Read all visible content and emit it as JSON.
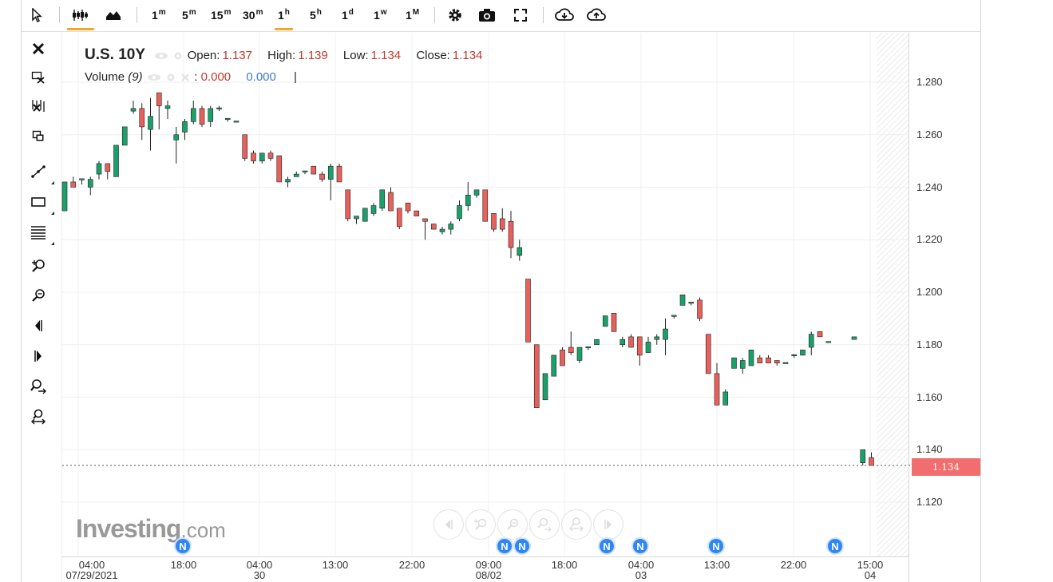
{
  "toolbar": {
    "intervals": [
      {
        "num": "1",
        "unit": "m"
      },
      {
        "num": "5",
        "unit": "m"
      },
      {
        "num": "15",
        "unit": "m"
      },
      {
        "num": "30",
        "unit": "m"
      },
      {
        "num": "1",
        "unit": "h"
      },
      {
        "num": "5",
        "unit": "h"
      },
      {
        "num": "1",
        "unit": "d"
      },
      {
        "num": "1",
        "unit": "w"
      },
      {
        "num": "1",
        "unit": "M"
      }
    ],
    "active_interval": "1h",
    "icons": [
      "cursor-icon",
      "candlestick-icon",
      "area-chart-icon",
      "settings-icon",
      "camera-icon",
      "fullscreen-icon",
      "cloud-download-icon",
      "cloud-upload-icon"
    ]
  },
  "left_tools": [
    "close-icon",
    "delete-drawings-icon",
    "delete-studies-icon",
    "copy-icon",
    "trend-line-icon",
    "rectangle-icon",
    "fibonacci-icon",
    "zoom-in-icon",
    "zoom-out-icon",
    "scroll-left-icon",
    "scroll-right-icon",
    "zoom-in-area-icon",
    "zoom-reset-icon"
  ],
  "legend": {
    "symbol": "U.S. 10Y",
    "open_label": "Open:",
    "open": "1.137",
    "high_label": "High:",
    "high": "1.139",
    "low_label": "Low:",
    "low": "1.134",
    "close_label": "Close:",
    "close": "1.134",
    "volume_label": "Volume",
    "volume_param": "(9)",
    "volume_sep": ":",
    "volume_val1": "0.000",
    "volume_val2": "0.000",
    "cursor_mark": "|"
  },
  "current_price": "1.134",
  "logo": {
    "brand": "Investing",
    "domain": ".com"
  },
  "news_badge": "N",
  "colors": {
    "up": "#1aa06a",
    "down": "#e8605c",
    "accent": "#f5a623",
    "news": "#2f86f4",
    "price_tag": "#f26d6d"
  },
  "chart_data": {
    "type": "candlestick",
    "title": "U.S. 10Y",
    "interval": "1h",
    "ylim": [
      1.1,
      1.295
    ],
    "y_ticks": [
      "1.280",
      "1.260",
      "1.240",
      "1.220",
      "1.200",
      "1.180",
      "1.160",
      "1.140",
      "1.120"
    ],
    "x_ticks": [
      {
        "time": "04:00",
        "date": "07/29/2021"
      },
      {
        "time": "18:00",
        "date": ""
      },
      {
        "time": "04:00",
        "date": "30"
      },
      {
        "time": "13:00",
        "date": ""
      },
      {
        "time": "22:00",
        "date": ""
      },
      {
        "time": "09:00",
        "date": "08/02"
      },
      {
        "time": "18:00",
        "date": ""
      },
      {
        "time": "04:00",
        "date": "03"
      },
      {
        "time": "13:00",
        "date": ""
      },
      {
        "time": "22:00",
        "date": ""
      },
      {
        "time": "15:00",
        "date": "04"
      }
    ],
    "last_price": 1.134,
    "candles": [
      {
        "o": 1.231,
        "h": 1.242,
        "l": 1.231,
        "c": 1.242
      },
      {
        "o": 1.242,
        "h": 1.244,
        "l": 1.24,
        "c": 1.24
      },
      {
        "o": 1.243,
        "h": 1.243,
        "l": 1.241,
        "c": 1.243
      },
      {
        "o": 1.24,
        "h": 1.244,
        "l": 1.237,
        "c": 1.243
      },
      {
        "o": 1.245,
        "h": 1.25,
        "l": 1.243,
        "c": 1.249
      },
      {
        "o": 1.249,
        "h": 1.249,
        "l": 1.243,
        "c": 1.246
      },
      {
        "o": 1.244,
        "h": 1.256,
        "l": 1.244,
        "c": 1.256
      },
      {
        "o": 1.256,
        "h": 1.263,
        "l": 1.256,
        "c": 1.263
      },
      {
        "o": 1.269,
        "h": 1.273,
        "l": 1.268,
        "c": 1.27
      },
      {
        "o": 1.27,
        "h": 1.272,
        "l": 1.258,
        "c": 1.263
      },
      {
        "o": 1.262,
        "h": 1.274,
        "l": 1.254,
        "c": 1.267
      },
      {
        "o": 1.276,
        "h": 1.276,
        "l": 1.262,
        "c": 1.271
      },
      {
        "o": 1.27,
        "h": 1.273,
        "l": 1.266,
        "c": 1.271
      },
      {
        "o": 1.258,
        "h": 1.263,
        "l": 1.249,
        "c": 1.26
      },
      {
        "o": 1.261,
        "h": 1.266,
        "l": 1.258,
        "c": 1.265
      },
      {
        "o": 1.265,
        "h": 1.273,
        "l": 1.264,
        "c": 1.27
      },
      {
        "o": 1.27,
        "h": 1.271,
        "l": 1.263,
        "c": 1.264
      },
      {
        "o": 1.265,
        "h": 1.271,
        "l": 1.263,
        "c": 1.27
      },
      {
        "o": 1.27,
        "h": 1.271,
        "l": 1.269,
        "c": 1.27
      },
      {
        "o": 1.266,
        "h": 1.266,
        "l": 1.265,
        "c": 1.266
      },
      {
        "o": 1.265,
        "h": 1.265,
        "l": 1.265,
        "c": 1.265
      },
      {
        "o": 1.26,
        "h": 1.26,
        "l": 1.25,
        "c": 1.251
      },
      {
        "o": 1.253,
        "h": 1.254,
        "l": 1.249,
        "c": 1.25
      },
      {
        "o": 1.25,
        "h": 1.253,
        "l": 1.249,
        "c": 1.253
      },
      {
        "o": 1.253,
        "h": 1.254,
        "l": 1.25,
        "c": 1.251
      },
      {
        "o": 1.252,
        "h": 1.252,
        "l": 1.242,
        "c": 1.242
      },
      {
        "o": 1.242,
        "h": 1.244,
        "l": 1.24,
        "c": 1.243
      },
      {
        "o": 1.244,
        "h": 1.246,
        "l": 1.244,
        "c": 1.245
      },
      {
        "o": 1.246,
        "h": 1.246,
        "l": 1.245,
        "c": 1.246
      },
      {
        "o": 1.248,
        "h": 1.248,
        "l": 1.245,
        "c": 1.245
      },
      {
        "o": 1.245,
        "h": 1.246,
        "l": 1.242,
        "c": 1.243
      },
      {
        "o": 1.243,
        "h": 1.249,
        "l": 1.235,
        "c": 1.248
      },
      {
        "o": 1.248,
        "h": 1.249,
        "l": 1.242,
        "c": 1.242
      },
      {
        "o": 1.239,
        "h": 1.239,
        "l": 1.227,
        "c": 1.228
      },
      {
        "o": 1.228,
        "h": 1.229,
        "l": 1.226,
        "c": 1.229
      },
      {
        "o": 1.227,
        "h": 1.232,
        "l": 1.227,
        "c": 1.232
      },
      {
        "o": 1.23,
        "h": 1.234,
        "l": 1.229,
        "c": 1.233
      },
      {
        "o": 1.232,
        "h": 1.239,
        "l": 1.231,
        "c": 1.239
      },
      {
        "o": 1.238,
        "h": 1.24,
        "l": 1.231,
        "c": 1.231
      },
      {
        "o": 1.232,
        "h": 1.232,
        "l": 1.224,
        "c": 1.225
      },
      {
        "o": 1.234,
        "h": 1.234,
        "l": 1.23,
        "c": 1.231
      },
      {
        "o": 1.231,
        "h": 1.231,
        "l": 1.229,
        "c": 1.229
      },
      {
        "o": 1.228,
        "h": 1.228,
        "l": 1.22,
        "c": 1.227
      },
      {
        "o": 1.226,
        "h": 1.226,
        "l": 1.224,
        "c": 1.224
      },
      {
        "o": 1.223,
        "h": 1.225,
        "l": 1.222,
        "c": 1.224
      },
      {
        "o": 1.224,
        "h": 1.227,
        "l": 1.222,
        "c": 1.226
      },
      {
        "o": 1.228,
        "h": 1.235,
        "l": 1.227,
        "c": 1.233
      },
      {
        "o": 1.233,
        "h": 1.242,
        "l": 1.231,
        "c": 1.237
      },
      {
        "o": 1.237,
        "h": 1.239,
        "l": 1.236,
        "c": 1.239
      },
      {
        "o": 1.239,
        "h": 1.239,
        "l": 1.227,
        "c": 1.227
      },
      {
        "o": 1.23,
        "h": 1.23,
        "l": 1.223,
        "c": 1.224
      },
      {
        "o": 1.228,
        "h": 1.232,
        "l": 1.223,
        "c": 1.224
      },
      {
        "o": 1.227,
        "h": 1.231,
        "l": 1.213,
        "c": 1.217
      },
      {
        "o": 1.214,
        "h": 1.22,
        "l": 1.212,
        "c": 1.217
      },
      {
        "o": 1.205,
        "h": 1.205,
        "l": 1.181,
        "c": 1.181
      },
      {
        "o": 1.18,
        "h": 1.18,
        "l": 1.156,
        "c": 1.156
      },
      {
        "o": 1.159,
        "h": 1.169,
        "l": 1.159,
        "c": 1.169
      },
      {
        "o": 1.168,
        "h": 1.176,
        "l": 1.168,
        "c": 1.176
      },
      {
        "o": 1.178,
        "h": 1.179,
        "l": 1.172,
        "c": 1.172
      },
      {
        "o": 1.179,
        "h": 1.185,
        "l": 1.176,
        "c": 1.177
      },
      {
        "o": 1.174,
        "h": 1.179,
        "l": 1.173,
        "c": 1.179
      },
      {
        "o": 1.179,
        "h": 1.179,
        "l": 1.178,
        "c": 1.179
      },
      {
        "o": 1.18,
        "h": 1.182,
        "l": 1.18,
        "c": 1.182
      },
      {
        "o": 1.187,
        "h": 1.191,
        "l": 1.187,
        "c": 1.191
      },
      {
        "o": 1.192,
        "h": 1.192,
        "l": 1.185,
        "c": 1.185
      },
      {
        "o": 1.18,
        "h": 1.183,
        "l": 1.179,
        "c": 1.182
      },
      {
        "o": 1.183,
        "h": 1.184,
        "l": 1.179,
        "c": 1.179
      },
      {
        "o": 1.183,
        "h": 1.183,
        "l": 1.172,
        "c": 1.176
      },
      {
        "o": 1.177,
        "h": 1.183,
        "l": 1.177,
        "c": 1.181
      },
      {
        "o": 1.182,
        "h": 1.184,
        "l": 1.18,
        "c": 1.183
      },
      {
        "o": 1.182,
        "h": 1.19,
        "l": 1.176,
        "c": 1.186
      },
      {
        "o": 1.191,
        "h": 1.191,
        "l": 1.19,
        "c": 1.191
      },
      {
        "o": 1.195,
        "h": 1.199,
        "l": 1.195,
        "c": 1.199
      },
      {
        "o": 1.196,
        "h": 1.196,
        "l": 1.195,
        "c": 1.196
      },
      {
        "o": 1.197,
        "h": 1.198,
        "l": 1.189,
        "c": 1.19
      },
      {
        "o": 1.184,
        "h": 1.184,
        "l": 1.169,
        "c": 1.169
      },
      {
        "o": 1.169,
        "h": 1.173,
        "l": 1.157,
        "c": 1.157
      },
      {
        "o": 1.157,
        "h": 1.163,
        "l": 1.157,
        "c": 1.162
      },
      {
        "o": 1.171,
        "h": 1.175,
        "l": 1.171,
        "c": 1.175
      },
      {
        "o": 1.171,
        "h": 1.175,
        "l": 1.169,
        "c": 1.174
      },
      {
        "o": 1.172,
        "h": 1.178,
        "l": 1.172,
        "c": 1.178
      },
      {
        "o": 1.175,
        "h": 1.176,
        "l": 1.173,
        "c": 1.173
      },
      {
        "o": 1.175,
        "h": 1.176,
        "l": 1.173,
        "c": 1.173
      },
      {
        "o": 1.174,
        "h": 1.174,
        "l": 1.172,
        "c": 1.173
      },
      {
        "o": 1.173,
        "h": 1.173,
        "l": 1.173,
        "c": 1.173
      },
      {
        "o": 1.176,
        "h": 1.176,
        "l": 1.175,
        "c": 1.176
      },
      {
        "o": 1.176,
        "h": 1.178,
        "l": 1.176,
        "c": 1.178
      },
      {
        "o": 1.179,
        "h": 1.185,
        "l": 1.176,
        "c": 1.184
      },
      {
        "o": 1.185,
        "h": 1.185,
        "l": 1.183,
        "c": 1.183
      },
      {
        "o": 1.181,
        "h": 1.181,
        "l": 1.181,
        "c": 1.181
      },
      {
        "o": 1.182,
        "h": 1.183,
        "l": 1.182,
        "c": 1.183
      },
      {
        "o": 1.135,
        "h": 1.14,
        "l": 1.134,
        "c": 1.14
      },
      {
        "o": 1.137,
        "h": 1.139,
        "l": 1.134,
        "c": 1.134
      }
    ],
    "candle_gaps": [
      90
    ]
  }
}
